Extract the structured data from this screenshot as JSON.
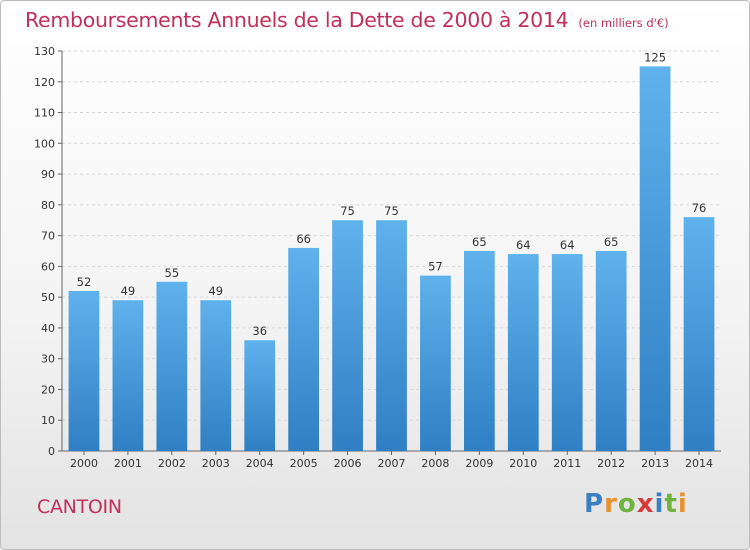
{
  "page": {
    "title": "Remboursements Annuels de la Dette de 2000 à 2014",
    "unit": "(en milliers d'€)",
    "town": "CANTOIN",
    "logo": {
      "letters": [
        "P",
        "r",
        "o",
        "x",
        "i",
        "t",
        "i"
      ],
      "colors": [
        "#3a7fc1",
        "#e8912d",
        "#6fb43f",
        "#d83a3a",
        "#3a7fc1",
        "#6fb43f",
        "#e8912d"
      ]
    }
  },
  "chart_data": {
    "type": "bar",
    "title": "Remboursements Annuels de la Dette de 2000 à 2014",
    "subtitle": "(en milliers d'€)",
    "xlabel": "",
    "ylabel": "",
    "categories": [
      "2000",
      "2001",
      "2002",
      "2003",
      "2004",
      "2005",
      "2006",
      "2007",
      "2008",
      "2009",
      "2010",
      "2011",
      "2012",
      "2013",
      "2014"
    ],
    "values": [
      52,
      49,
      55,
      49,
      36,
      66,
      75,
      75,
      57,
      65,
      64,
      64,
      65,
      125,
      76
    ],
    "ylim": [
      0,
      130
    ],
    "yticks": [
      0,
      10,
      20,
      30,
      40,
      50,
      60,
      70,
      80,
      90,
      100,
      110,
      120,
      130
    ],
    "grid": true,
    "bar_color": "#4a9fe0"
  }
}
